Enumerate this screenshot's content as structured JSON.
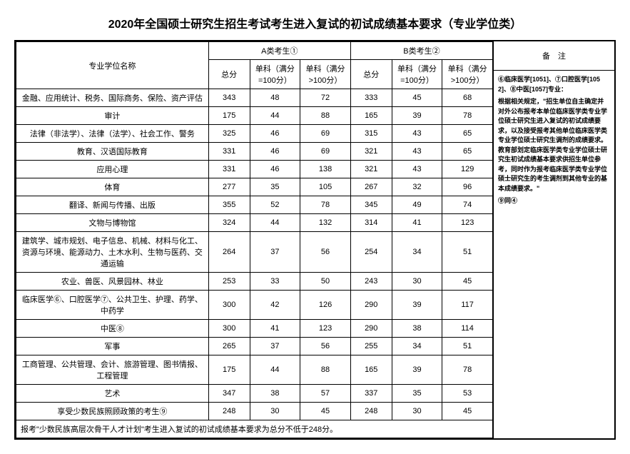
{
  "title": "2020年全国硕士研究生招生考试考生进入复试的初试成绩基本要求（专业学位类）",
  "header": {
    "nameCol": "专业学位名称",
    "groupA": "A类考生①",
    "groupB": "B类考生②",
    "total": "总分",
    "sub100": "单科（满分=100分）",
    "subGt100": "单科（满分>100分）",
    "notes": "备　注"
  },
  "rows": [
    {
      "name": "金融、应用统计、税务、国际商务、保险、资产评估",
      "a": [
        "343",
        "48",
        "72"
      ],
      "b": [
        "333",
        "45",
        "68"
      ]
    },
    {
      "name": "审计",
      "a": [
        "175",
        "44",
        "88"
      ],
      "b": [
        "165",
        "39",
        "78"
      ]
    },
    {
      "name": "法律（非法学）、法律（法学）、社会工作、警务",
      "a": [
        "325",
        "46",
        "69"
      ],
      "b": [
        "315",
        "43",
        "65"
      ]
    },
    {
      "name": "教育、汉语国际教育",
      "a": [
        "331",
        "46",
        "69"
      ],
      "b": [
        "321",
        "43",
        "65"
      ]
    },
    {
      "name": "应用心理",
      "a": [
        "331",
        "46",
        "138"
      ],
      "b": [
        "321",
        "43",
        "129"
      ]
    },
    {
      "name": "体育",
      "a": [
        "277",
        "35",
        "105"
      ],
      "b": [
        "267",
        "32",
        "96"
      ]
    },
    {
      "name": "翻译、新闻与传播、出版",
      "a": [
        "355",
        "52",
        "78"
      ],
      "b": [
        "345",
        "49",
        "74"
      ]
    },
    {
      "name": "文物与博物馆",
      "a": [
        "324",
        "44",
        "132"
      ],
      "b": [
        "314",
        "41",
        "123"
      ]
    },
    {
      "name": "建筑学、城市规划、电子信息、机械、材料与化工、资源与环境、能源动力、土木水利、生物与医药、交通运输",
      "a": [
        "264",
        "37",
        "56"
      ],
      "b": [
        "254",
        "34",
        "51"
      ]
    },
    {
      "name": "农业、兽医、风景园林、林业",
      "a": [
        "253",
        "33",
        "50"
      ],
      "b": [
        "243",
        "30",
        "45"
      ]
    },
    {
      "name": "临床医学⑥、口腔医学⑦、公共卫生、护理、药学、中药学",
      "a": [
        "300",
        "42",
        "126"
      ],
      "b": [
        "290",
        "39",
        "117"
      ]
    },
    {
      "name": "中医⑧",
      "a": [
        "300",
        "41",
        "123"
      ],
      "b": [
        "290",
        "38",
        "114"
      ]
    },
    {
      "name": "军事",
      "a": [
        "265",
        "37",
        "56"
      ],
      "b": [
        "255",
        "34",
        "51"
      ]
    },
    {
      "name": "工商管理、公共管理、会计、旅游管理、图书情报、工程管理",
      "a": [
        "175",
        "44",
        "88"
      ],
      "b": [
        "165",
        "39",
        "78"
      ]
    },
    {
      "name": "艺术",
      "a": [
        "347",
        "38",
        "57"
      ],
      "b": [
        "337",
        "35",
        "53"
      ]
    },
    {
      "name": "享受少数民族照顾政策的考生⑨",
      "a": [
        "248",
        "30",
        "45"
      ],
      "b": [
        "248",
        "30",
        "45"
      ]
    }
  ],
  "footnote": "报考\"少数民族高层次骨干人才计划\"考生进入复试的初试成绩基本要求为总分不低于248分。",
  "notesBody": [
    "⑥临床医学[1051]、⑦口腔医学[1052]、⑧中医[1057]专业：",
    "根据相关规定，\"招生单位自主确定并对外公布报考本单位临床医学类专业学位硕士研究生进入复试的初试成绩要求，以及接受报考其他单位临床医学类专业学位硕士研究生调剂的成绩要求。教育部划定临床医学类专业学位硕士研究生初试成绩基本要求供招生单位参考，同时作为报考临床医学类专业学位硕士研究生的考生调剂到其他专业的基本成绩要求。\"",
    "⑨同④"
  ]
}
